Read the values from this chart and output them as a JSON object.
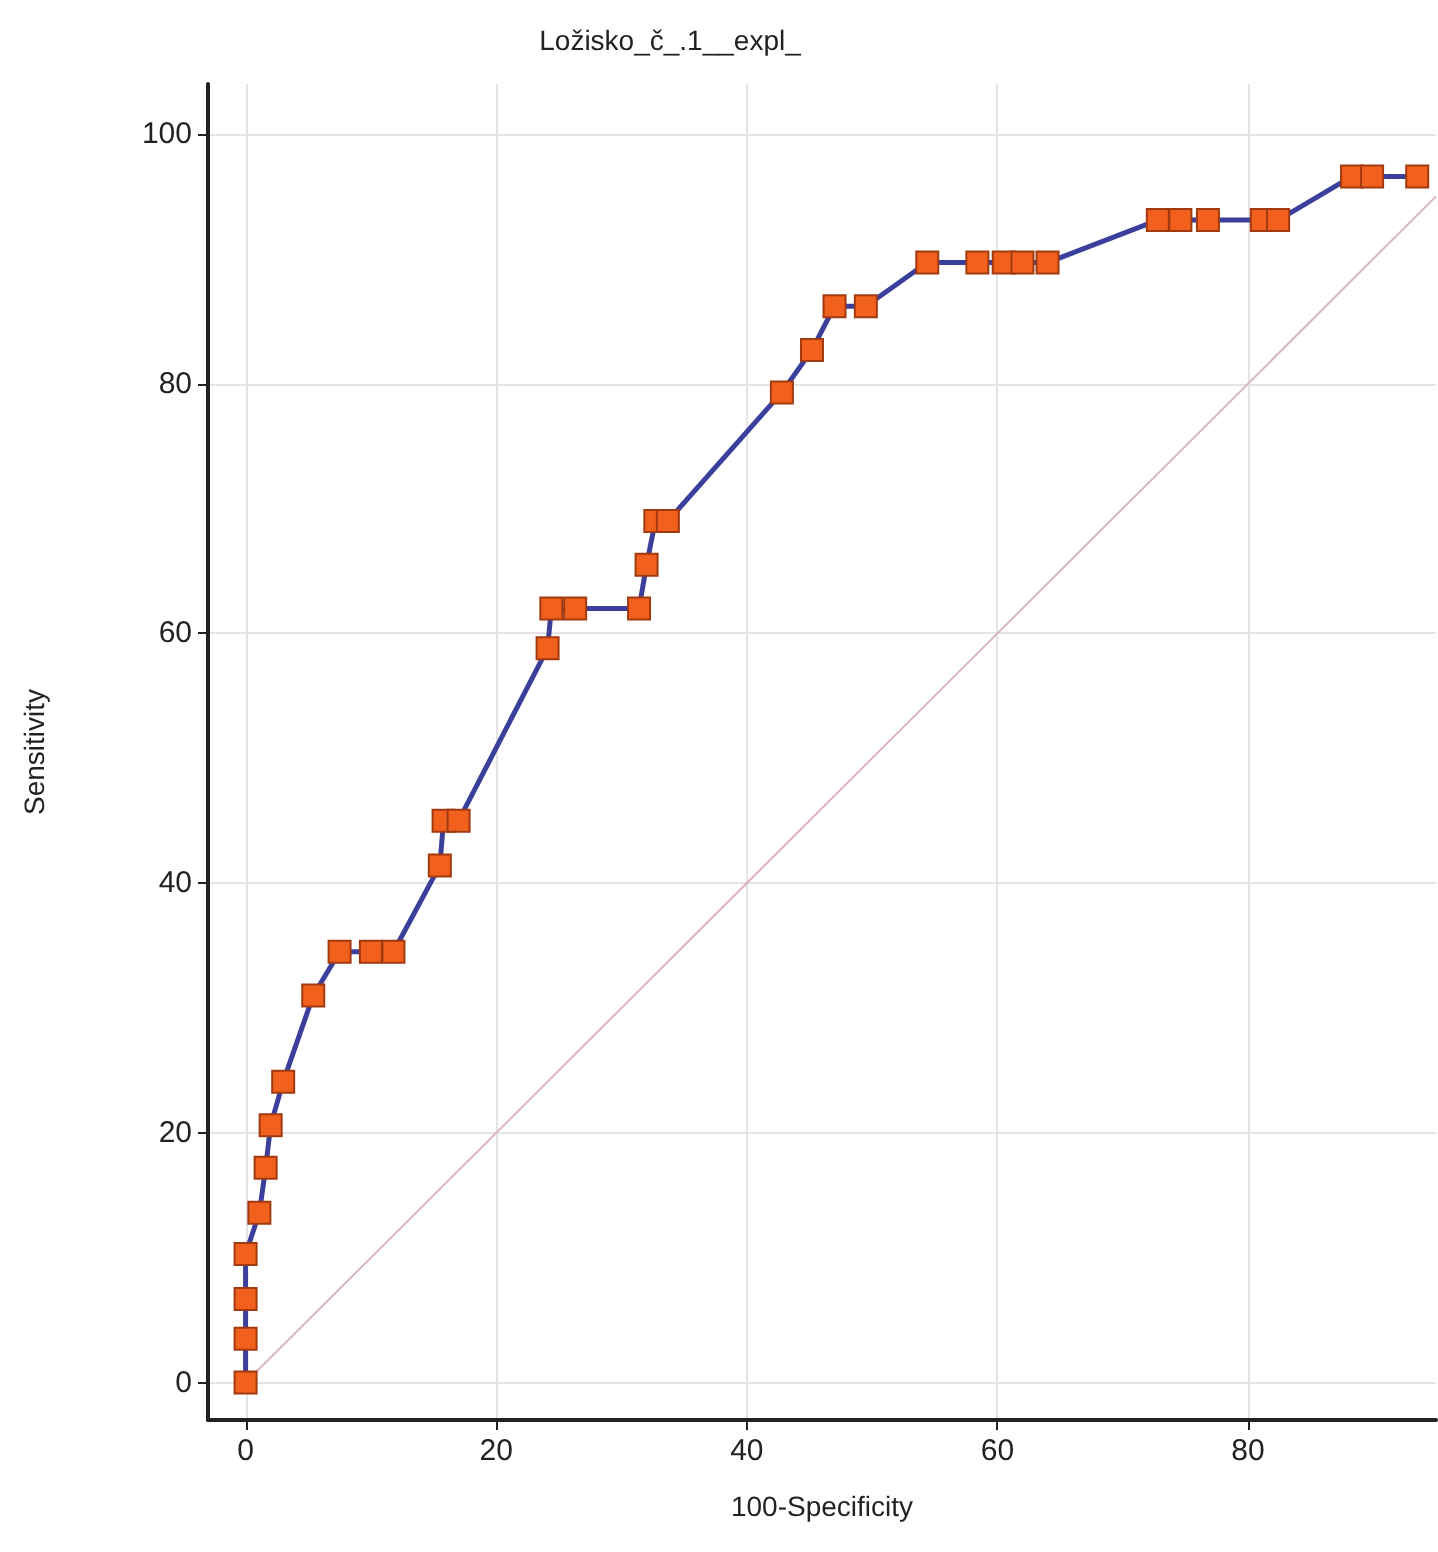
{
  "chart_data": {
    "type": "line",
    "title": "Ložisko_č_.1__expl_",
    "xlabel": "100-Specificity",
    "ylabel": "Sensitivity",
    "xlim": [
      -3,
      95
    ],
    "ylim": [
      -3,
      104
    ],
    "xticks": [
      0,
      20,
      40,
      60,
      80
    ],
    "yticks": [
      0,
      20,
      40,
      60,
      80,
      100
    ],
    "grid": true,
    "series": [
      {
        "color": "#d9b3c6",
        "x": [
          0,
          95
        ],
        "values": [
          0,
          95
        ]
      },
      {
        "color": "#3b3f9c",
        "marker": "square",
        "x": [
          0,
          0,
          0,
          0,
          1.1,
          1.6,
          2,
          3,
          5.4,
          7.5,
          10,
          11.8,
          15.5,
          15.8,
          17,
          24.1,
          24.4,
          26.3,
          31.4,
          32,
          32.7,
          33.7,
          42.8,
          45.2,
          47,
          49.5,
          54.4,
          58.4,
          60.5,
          62,
          64,
          72.8,
          74.6,
          76.8,
          81.1,
          82.4,
          88.3,
          89.9,
          93.5
        ],
        "values": [
          0,
          3.5,
          6.7,
          10.3,
          13.6,
          17.2,
          20.6,
          24.1,
          31,
          34.5,
          34.5,
          34.5,
          41.4,
          45,
          45,
          58.8,
          62,
          62,
          62,
          65.5,
          69,
          69,
          79.3,
          82.7,
          86.2,
          86.2,
          89.7,
          89.7,
          89.7,
          89.7,
          89.7,
          93.1,
          93.1,
          93.1,
          93.1,
          93.1,
          96.6,
          96.6,
          96.6
        ]
      }
    ]
  }
}
